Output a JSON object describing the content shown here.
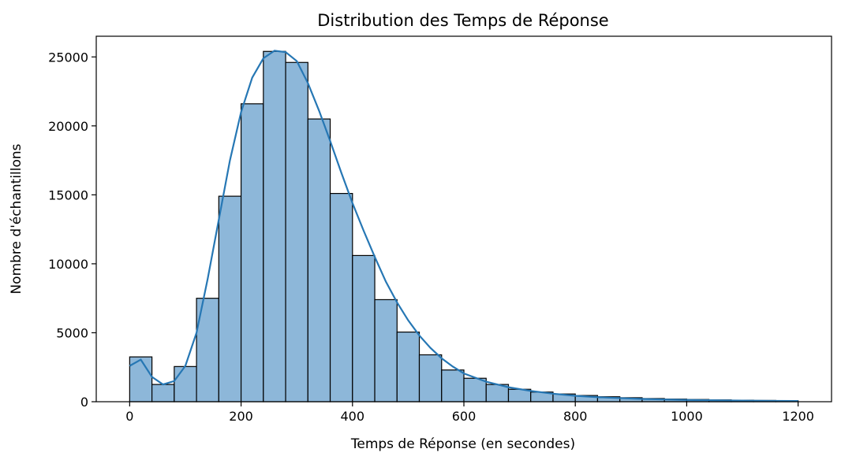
{
  "chart_data": {
    "type": "bar",
    "title": "Distribution des Temps de Réponse",
    "xlabel": "Temps de Réponse (en secondes)",
    "ylabel": "Nombre d'échantillons",
    "xlim": [
      -60,
      1260
    ],
    "ylim": [
      0,
      26500
    ],
    "x_ticks": [
      0,
      200,
      400,
      600,
      800,
      1000,
      1200
    ],
    "y_ticks": [
      0,
      5000,
      10000,
      15000,
      20000,
      25000
    ],
    "bin_edges": [
      0,
      40,
      80,
      120,
      160,
      200,
      240,
      280,
      320,
      360,
      400,
      440,
      480,
      520,
      560,
      600,
      640,
      680,
      720,
      760,
      800,
      840,
      880,
      920,
      960,
      1000,
      1040,
      1080,
      1120,
      1160,
      1200
    ],
    "values": [
      3250,
      1250,
      2550,
      7500,
      14900,
      21600,
      25400,
      24600,
      20500,
      15100,
      10600,
      7400,
      5050,
      3400,
      2300,
      1700,
      1250,
      900,
      700,
      560,
      450,
      360,
      290,
      230,
      190,
      160,
      130,
      110,
      90,
      70
    ],
    "series": [
      {
        "name": "kde",
        "type": "line",
        "x": [
          0,
          20,
          40,
          60,
          80,
          100,
          120,
          140,
          160,
          180,
          200,
          220,
          240,
          260,
          280,
          300,
          320,
          340,
          360,
          380,
          400,
          420,
          440,
          460,
          480,
          500,
          520,
          540,
          560,
          580,
          600,
          640,
          680,
          720,
          760,
          800,
          840,
          880,
          920,
          960,
          1000,
          1040,
          1080,
          1120,
          1160,
          1200
        ],
        "y": [
          2600,
          3050,
          1800,
          1250,
          1500,
          2600,
          5000,
          8900,
          13200,
          17500,
          21000,
          23500,
          24900,
          25450,
          25350,
          24700,
          23100,
          21100,
          18900,
          16600,
          14400,
          12400,
          10500,
          8700,
          7200,
          5900,
          4800,
          3900,
          3150,
          2550,
          2050,
          1450,
          1050,
          780,
          580,
          430,
          330,
          260,
          200,
          160,
          130,
          110,
          90,
          70,
          60,
          50
        ]
      }
    ],
    "colors": {
      "bar_fill": "#8db7d9",
      "bar_edge": "#000000",
      "kde_line": "#2677b4"
    },
    "grid": false
  }
}
